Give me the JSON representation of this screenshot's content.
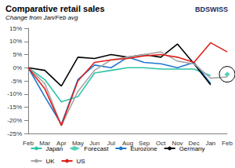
{
  "chart_data": {
    "type": "line",
    "title": "Comparative retail sales",
    "subtitle": "Change from Jan/Feb avg",
    "logo": "BDSWISS",
    "categories": [
      "Feb",
      "Mar",
      "Apr",
      "May",
      "Jun",
      "Jul",
      "Aug",
      "Sep",
      "Oct",
      "Nov",
      "Dec",
      "Jan",
      "Feb"
    ],
    "series": [
      {
        "name": "Japan",
        "color": "#2ec4a6",
        "type": "line",
        "line_style": "solid",
        "values": [
          0,
          -4.5,
          -13,
          -11,
          -2,
          -1,
          0,
          0,
          -0.5,
          -0.5,
          -0.5,
          -3,
          null
        ]
      },
      {
        "name": "Forecast",
        "color": "#2ec4a6",
        "type": "scatter",
        "marker": "diamond",
        "values": [
          null,
          null,
          null,
          null,
          null,
          null,
          null,
          null,
          null,
          null,
          null,
          null,
          -2.5
        ]
      },
      {
        "name": "Eurozone",
        "color": "#1f78d1",
        "type": "line",
        "line_style": "solid",
        "values": [
          0,
          -11,
          -21.5,
          -4.5,
          1,
          0,
          4,
          2,
          1.5,
          0,
          2,
          -6,
          null
        ]
      },
      {
        "name": "Germany",
        "color": "#000000",
        "type": "line",
        "line_style": "solid",
        "values": [
          0,
          -1,
          -7,
          4,
          3.5,
          5,
          4,
          5,
          4,
          9,
          1.5,
          -6.5,
          null
        ]
      },
      {
        "name": "UK",
        "color": "#a6a6a6",
        "type": "line",
        "line_style": "solid",
        "values": [
          0,
          -6,
          -22,
          -9,
          -1,
          3,
          4,
          5,
          6,
          2.5,
          1.5,
          -4,
          -3.5
        ]
      },
      {
        "name": "US",
        "color": "#e0201b",
        "type": "line",
        "line_style": "solid",
        "values": [
          0,
          -8,
          -22,
          -5,
          2,
          3,
          3.5,
          4.5,
          5,
          4,
          2,
          9.5,
          6
        ]
      }
    ],
    "ylim": [
      -25,
      15
    ],
    "yticks": [
      {
        "value": -25,
        "label": "-25%"
      },
      {
        "value": -20,
        "label": "-20%"
      },
      {
        "value": -15,
        "label": "-15%"
      },
      {
        "value": -10,
        "label": "-10%"
      },
      {
        "value": -5,
        "label": "-5%"
      },
      {
        "value": 0,
        "label": "0%"
      },
      {
        "value": 5,
        "label": "5%"
      },
      {
        "value": 10,
        "label": "10%"
      },
      {
        "value": 15,
        "label": "15%"
      }
    ],
    "grid": false,
    "legend": "bottom"
  }
}
